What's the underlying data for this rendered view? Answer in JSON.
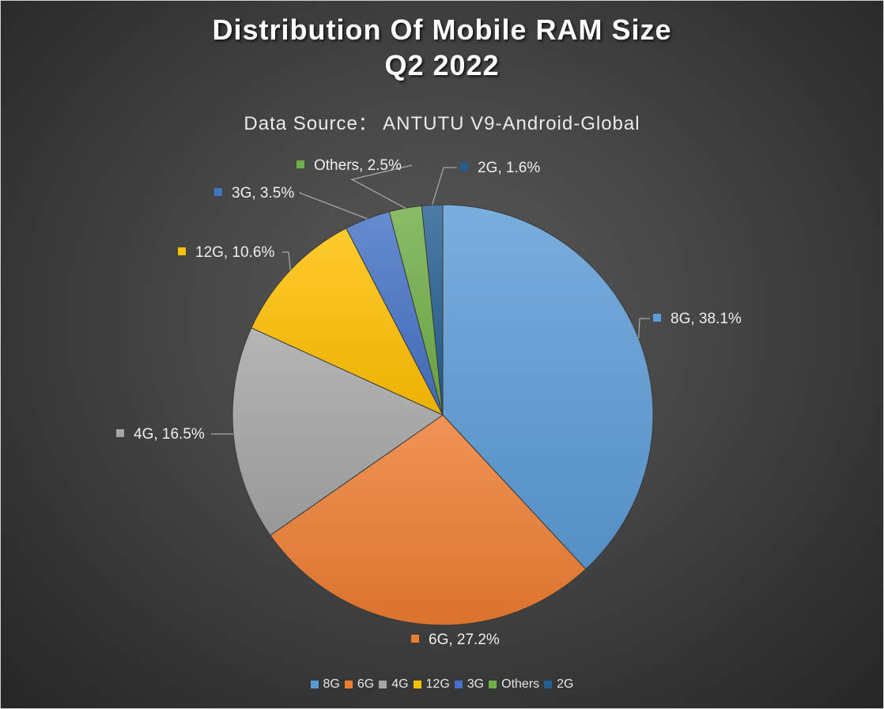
{
  "chart_data": {
    "type": "pie",
    "title_lines": [
      "Distribution Of Mobile RAM Size",
      "Q2 2022"
    ],
    "subtitle": "Data Source： ANTUTU V9-Android-Global",
    "categories": [
      "8G",
      "6G",
      "4G",
      "12G",
      "3G",
      "Others",
      "2G"
    ],
    "values": [
      38.1,
      27.2,
      16.5,
      10.6,
      3.5,
      2.5,
      1.6
    ],
    "unit": "%",
    "data_labels": [
      "8G, 38.1%",
      "6G, 27.2%",
      "4G, 16.5%",
      "12G, 10.6%",
      "3G, 3.5%",
      "Others, 2.5%",
      "2G, 1.6%"
    ],
    "colors": [
      "#5b9bd5",
      "#ed7d31",
      "#a5a5a5",
      "#ffc000",
      "#4472c4",
      "#70ad47",
      "#255e91"
    ],
    "start_angle": "12 o'clock",
    "direction": "clockwise",
    "legend_position": "bottom",
    "background": "#404040"
  }
}
